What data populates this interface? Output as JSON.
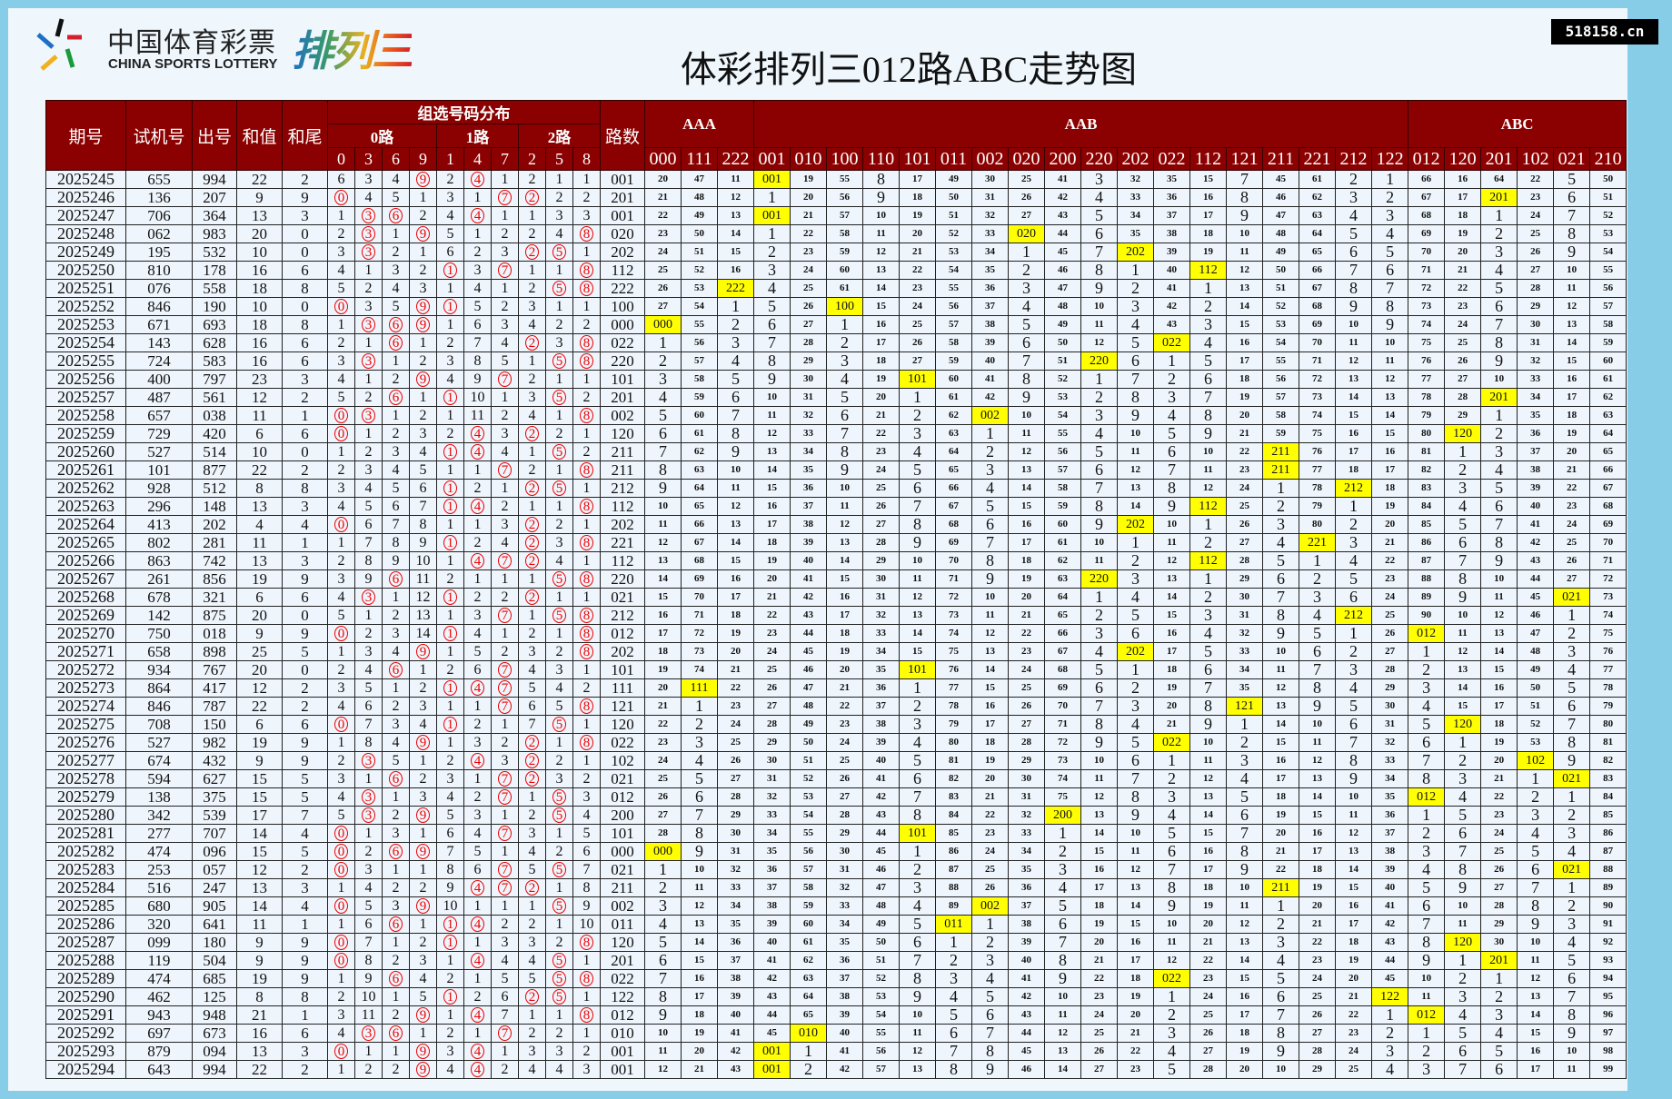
{
  "logo": {
    "cn": "中国体育彩票",
    "en": "CHINA SPORTS LOTTERY",
    "product": "排列三"
  },
  "title": "体彩排列三012路ABC走势图",
  "site": "518158.cn",
  "colors": {
    "header_bg": "#8b0000",
    "hit_bg": "#ffff00",
    "circle": "#e00000",
    "frame": "#87cde8",
    "row_bg": "#eef5fc"
  },
  "headers": {
    "issue": "期号",
    "test": "试机号",
    "draw": "出号",
    "sum": "和值",
    "tail": "和尾",
    "group_dist": "组选号码分布",
    "route": "路数",
    "route_groups": [
      {
        "label": "0路",
        "digits": [
          "0",
          "3",
          "6",
          "9"
        ]
      },
      {
        "label": "1路",
        "digits": [
          "1",
          "4",
          "7"
        ]
      },
      {
        "label": "2路",
        "digits": [
          "2",
          "5",
          "8"
        ]
      }
    ],
    "pattern_groups": [
      {
        "label": "AAA",
        "patterns": [
          "000",
          "111",
          "222"
        ]
      },
      {
        "label": "AAB",
        "patterns": [
          "001",
          "010",
          "100",
          "110",
          "101",
          "011",
          "002",
          "020",
          "200",
          "220",
          "202",
          "022",
          "112",
          "121",
          "211",
          "221",
          "212",
          "122"
        ]
      },
      {
        "label": "ABC",
        "patterns": [
          "012",
          "120",
          "201",
          "102",
          "021",
          "210"
        ]
      }
    ]
  },
  "initial_digit_omission": {
    "0": 6,
    "3": 3,
    "6": 4,
    "9": 0,
    "1": 2,
    "4": 0,
    "7": 1,
    "2": 2,
    "5": 1,
    "8": 1
  },
  "initial_pattern_omission": {
    "000": 20,
    "111": 47,
    "222": 11,
    "001": 0,
    "010": 19,
    "100": 55,
    "110": 8,
    "101": 17,
    "011": 49,
    "002": 30,
    "020": 25,
    "200": 41,
    "220": 3,
    "202": 32,
    "022": 35,
    "112": 15,
    "121": 7,
    "211": 45,
    "221": 61,
    "212": 2,
    "122": 1,
    "012": 66,
    "120": 16,
    "201": 64,
    "102": 22,
    "021": 5,
    "210": 50
  },
  "rows": [
    {
      "issue": "2025245",
      "test": "655",
      "draw": "994",
      "sum": "22",
      "tail": "2",
      "route": "001"
    },
    {
      "issue": "2025246",
      "test": "136",
      "draw": "207",
      "sum": "9",
      "tail": "9",
      "route": "201"
    },
    {
      "issue": "2025247",
      "test": "706",
      "draw": "364",
      "sum": "13",
      "tail": "3",
      "route": "001"
    },
    {
      "issue": "2025248",
      "test": "062",
      "draw": "983",
      "sum": "20",
      "tail": "0",
      "route": "020"
    },
    {
      "issue": "2025249",
      "test": "195",
      "draw": "532",
      "sum": "10",
      "tail": "0",
      "route": "202"
    },
    {
      "issue": "2025250",
      "test": "810",
      "draw": "178",
      "sum": "16",
      "tail": "6",
      "route": "112"
    },
    {
      "issue": "2025251",
      "test": "076",
      "draw": "558",
      "sum": "18",
      "tail": "8",
      "route": "222"
    },
    {
      "issue": "2025252",
      "test": "846",
      "draw": "190",
      "sum": "10",
      "tail": "0",
      "route": "100"
    },
    {
      "issue": "2025253",
      "test": "671",
      "draw": "693",
      "sum": "18",
      "tail": "8",
      "route": "000"
    },
    {
      "issue": "2025254",
      "test": "143",
      "draw": "628",
      "sum": "16",
      "tail": "6",
      "route": "022"
    },
    {
      "issue": "2025255",
      "test": "724",
      "draw": "583",
      "sum": "16",
      "tail": "6",
      "route": "220"
    },
    {
      "issue": "2025256",
      "test": "400",
      "draw": "797",
      "sum": "23",
      "tail": "3",
      "route": "101"
    },
    {
      "issue": "2025257",
      "test": "487",
      "draw": "561",
      "sum": "12",
      "tail": "2",
      "route": "201"
    },
    {
      "issue": "2025258",
      "test": "657",
      "draw": "038",
      "sum": "11",
      "tail": "1",
      "route": "002"
    },
    {
      "issue": "2025259",
      "test": "729",
      "draw": "420",
      "sum": "6",
      "tail": "6",
      "route": "120"
    },
    {
      "issue": "2025260",
      "test": "527",
      "draw": "514",
      "sum": "10",
      "tail": "0",
      "route": "211"
    },
    {
      "issue": "2025261",
      "test": "101",
      "draw": "877",
      "sum": "22",
      "tail": "2",
      "route": "211"
    },
    {
      "issue": "2025262",
      "test": "928",
      "draw": "512",
      "sum": "8",
      "tail": "8",
      "route": "212"
    },
    {
      "issue": "2025263",
      "test": "296",
      "draw": "148",
      "sum": "13",
      "tail": "3",
      "route": "112"
    },
    {
      "issue": "2025264",
      "test": "413",
      "draw": "202",
      "sum": "4",
      "tail": "4",
      "route": "202"
    },
    {
      "issue": "2025265",
      "test": "802",
      "draw": "281",
      "sum": "11",
      "tail": "1",
      "route": "221"
    },
    {
      "issue": "2025266",
      "test": "863",
      "draw": "742",
      "sum": "13",
      "tail": "3",
      "route": "112"
    },
    {
      "issue": "2025267",
      "test": "261",
      "draw": "856",
      "sum": "19",
      "tail": "9",
      "route": "220"
    },
    {
      "issue": "2025268",
      "test": "678",
      "draw": "321",
      "sum": "6",
      "tail": "6",
      "route": "021"
    },
    {
      "issue": "2025269",
      "test": "142",
      "draw": "875",
      "sum": "20",
      "tail": "0",
      "route": "212"
    },
    {
      "issue": "2025270",
      "test": "750",
      "draw": "018",
      "sum": "9",
      "tail": "9",
      "route": "012"
    },
    {
      "issue": "2025271",
      "test": "658",
      "draw": "898",
      "sum": "25",
      "tail": "5",
      "route": "202"
    },
    {
      "issue": "2025272",
      "test": "934",
      "draw": "767",
      "sum": "20",
      "tail": "0",
      "route": "101"
    },
    {
      "issue": "2025273",
      "test": "864",
      "draw": "417",
      "sum": "12",
      "tail": "2",
      "route": "111"
    },
    {
      "issue": "2025274",
      "test": "846",
      "draw": "787",
      "sum": "22",
      "tail": "2",
      "route": "121"
    },
    {
      "issue": "2025275",
      "test": "708",
      "draw": "150",
      "sum": "6",
      "tail": "6",
      "route": "120"
    },
    {
      "issue": "2025276",
      "test": "527",
      "draw": "982",
      "sum": "19",
      "tail": "9",
      "route": "022"
    },
    {
      "issue": "2025277",
      "test": "674",
      "draw": "432",
      "sum": "9",
      "tail": "9",
      "route": "102"
    },
    {
      "issue": "2025278",
      "test": "594",
      "draw": "627",
      "sum": "15",
      "tail": "5",
      "route": "021"
    },
    {
      "issue": "2025279",
      "test": "138",
      "draw": "375",
      "sum": "15",
      "tail": "5",
      "route": "012"
    },
    {
      "issue": "2025280",
      "test": "342",
      "draw": "539",
      "sum": "17",
      "tail": "7",
      "route": "200"
    },
    {
      "issue": "2025281",
      "test": "277",
      "draw": "707",
      "sum": "14",
      "tail": "4",
      "route": "101"
    },
    {
      "issue": "2025282",
      "test": "474",
      "draw": "096",
      "sum": "15",
      "tail": "5",
      "route": "000"
    },
    {
      "issue": "2025283",
      "test": "253",
      "draw": "057",
      "sum": "12",
      "tail": "2",
      "route": "021"
    },
    {
      "issue": "2025284",
      "test": "516",
      "draw": "247",
      "sum": "13",
      "tail": "3",
      "route": "211"
    },
    {
      "issue": "2025285",
      "test": "680",
      "draw": "905",
      "sum": "14",
      "tail": "4",
      "route": "002"
    },
    {
      "issue": "2025286",
      "test": "320",
      "draw": "641",
      "sum": "11",
      "tail": "1",
      "route": "011"
    },
    {
      "issue": "2025287",
      "test": "099",
      "draw": "180",
      "sum": "9",
      "tail": "9",
      "route": "120"
    },
    {
      "issue": "2025288",
      "test": "119",
      "draw": "504",
      "sum": "9",
      "tail": "9",
      "route": "201"
    },
    {
      "issue": "2025289",
      "test": "474",
      "draw": "685",
      "sum": "19",
      "tail": "9",
      "route": "022"
    },
    {
      "issue": "2025290",
      "test": "462",
      "draw": "125",
      "sum": "8",
      "tail": "8",
      "route": "122"
    },
    {
      "issue": "2025291",
      "test": "943",
      "draw": "948",
      "sum": "21",
      "tail": "1",
      "route": "012"
    },
    {
      "issue": "2025292",
      "test": "697",
      "draw": "673",
      "sum": "16",
      "tail": "6",
      "route": "010"
    },
    {
      "issue": "2025293",
      "test": "879",
      "draw": "094",
      "sum": "13",
      "tail": "3",
      "route": "001"
    },
    {
      "issue": "2025294",
      "test": "643",
      "draw": "994",
      "sum": "22",
      "tail": "2",
      "route": "001"
    }
  ]
}
